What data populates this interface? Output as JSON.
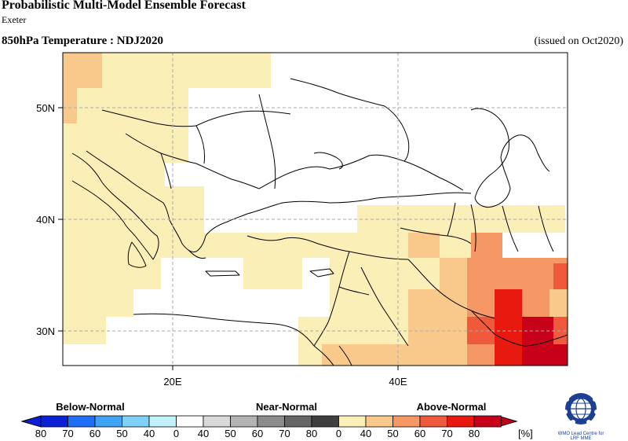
{
  "header": {
    "title": "Probabilistic Multi-Model Ensemble Forecast",
    "organization": "Exeter",
    "variable_period": "850hPa Temperature : NDJ2020",
    "issued": "(issued on Oct2020)"
  },
  "map": {
    "lat_labels": [
      "50N",
      "40N",
      "30N"
    ],
    "lon_labels": [
      "20E",
      "40E"
    ],
    "gridlines": "dashed",
    "region": "Eastern Mediterranean / Middle East"
  },
  "legend": {
    "categories": [
      "Below-Normal",
      "Near-Normal",
      "Above-Normal"
    ],
    "below_ticks": [
      "80",
      "70",
      "60",
      "50",
      "40"
    ],
    "near_ticks": [
      "0",
      "40",
      "50",
      "60",
      "70",
      "80"
    ],
    "above_ticks": [
      "0",
      "40",
      "50",
      "60",
      "70",
      "80"
    ],
    "unit": "[%]",
    "colors": {
      "below": [
        "#0a1fd6",
        "#1e6ff5",
        "#3ea4f5",
        "#7fd1f9",
        "#c2f0fb"
      ],
      "near": [
        "#ffffff",
        "#d9d9d9",
        "#b3b3b3",
        "#8c8c8c",
        "#666666",
        "#3f3f3f"
      ],
      "above": [
        "#fcefb8",
        "#f9c98c",
        "#f59866",
        "#f05a3c",
        "#e8190f",
        "#c8001a"
      ]
    }
  },
  "logo": {
    "caption_line1": "WMO Lead Centre for",
    "caption_line2": "LRF MME"
  }
}
